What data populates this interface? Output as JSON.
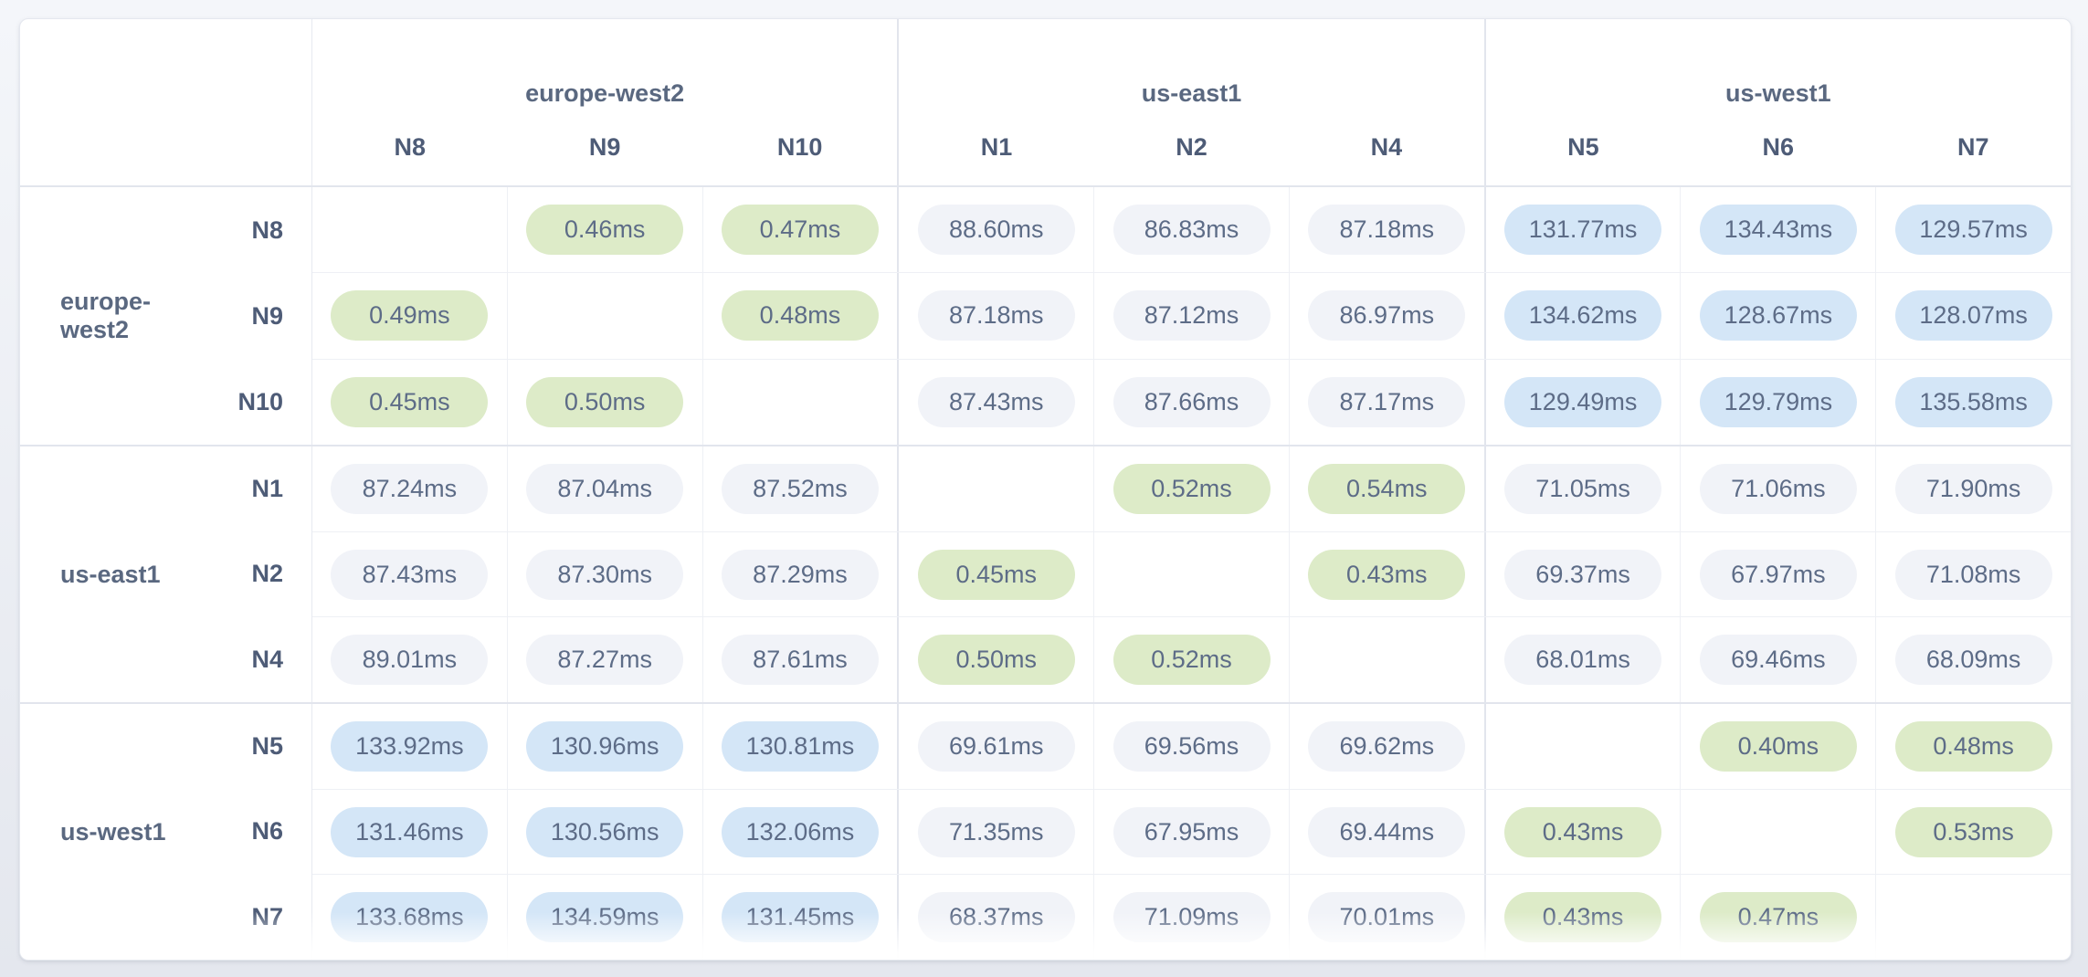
{
  "chart_data": {
    "type": "heatmap",
    "unit": "ms",
    "value_decimals": 2,
    "col_groups": [
      {
        "label": "europe-west2",
        "cols": [
          "N8",
          "N9",
          "N10"
        ]
      },
      {
        "label": "us-east1",
        "cols": [
          "N1",
          "N2",
          "N4"
        ]
      },
      {
        "label": "us-west1",
        "cols": [
          "N5",
          "N6",
          "N7"
        ]
      }
    ],
    "row_groups": [
      {
        "label": "europe-west2",
        "rows": [
          "N8",
          "N9",
          "N10"
        ]
      },
      {
        "label": "us-east1",
        "rows": [
          "N1",
          "N2",
          "N4"
        ]
      },
      {
        "label": "us-west1",
        "rows": [
          "N5",
          "N6",
          "N7"
        ]
      }
    ],
    "columns": [
      "N8",
      "N9",
      "N10",
      "N1",
      "N2",
      "N4",
      "N5",
      "N6",
      "N7"
    ],
    "rows": [
      "N8",
      "N9",
      "N10",
      "N1",
      "N2",
      "N4",
      "N5",
      "N6",
      "N7"
    ],
    "values": [
      [
        null,
        0.46,
        0.47,
        88.6,
        86.83,
        87.18,
        131.77,
        134.43,
        129.57
      ],
      [
        0.49,
        null,
        0.48,
        87.18,
        87.12,
        86.97,
        134.62,
        128.67,
        128.07
      ],
      [
        0.45,
        0.5,
        null,
        87.43,
        87.66,
        87.17,
        129.49,
        129.79,
        135.58
      ],
      [
        87.24,
        87.04,
        87.52,
        null,
        0.52,
        0.54,
        71.05,
        71.06,
        71.9
      ],
      [
        87.43,
        87.3,
        87.29,
        0.45,
        null,
        0.43,
        69.37,
        67.97,
        71.08
      ],
      [
        89.01,
        87.27,
        87.61,
        0.5,
        0.52,
        null,
        68.01,
        69.46,
        68.09
      ],
      [
        133.92,
        130.96,
        130.81,
        69.61,
        69.56,
        69.62,
        null,
        0.4,
        0.48
      ],
      [
        131.46,
        130.56,
        132.06,
        71.35,
        67.95,
        69.44,
        0.43,
        null,
        0.53
      ],
      [
        133.68,
        134.59,
        131.45,
        68.37,
        71.09,
        70.01,
        0.43,
        0.47,
        null
      ]
    ],
    "tier_thresholds": {
      "low_below_ms": 1,
      "mid_below_ms": 100
    }
  },
  "colors": {
    "pill_low_green": "#ddebc8",
    "pill_mid_gray": "#f1f3f8",
    "pill_high_blue": "#d4e6f7",
    "pill_text": "#5d6c87",
    "label_text": "#4e5c77",
    "region_text": "#5a6880",
    "card_background": "#ffffff",
    "page_background": "#e9ecf2"
  }
}
